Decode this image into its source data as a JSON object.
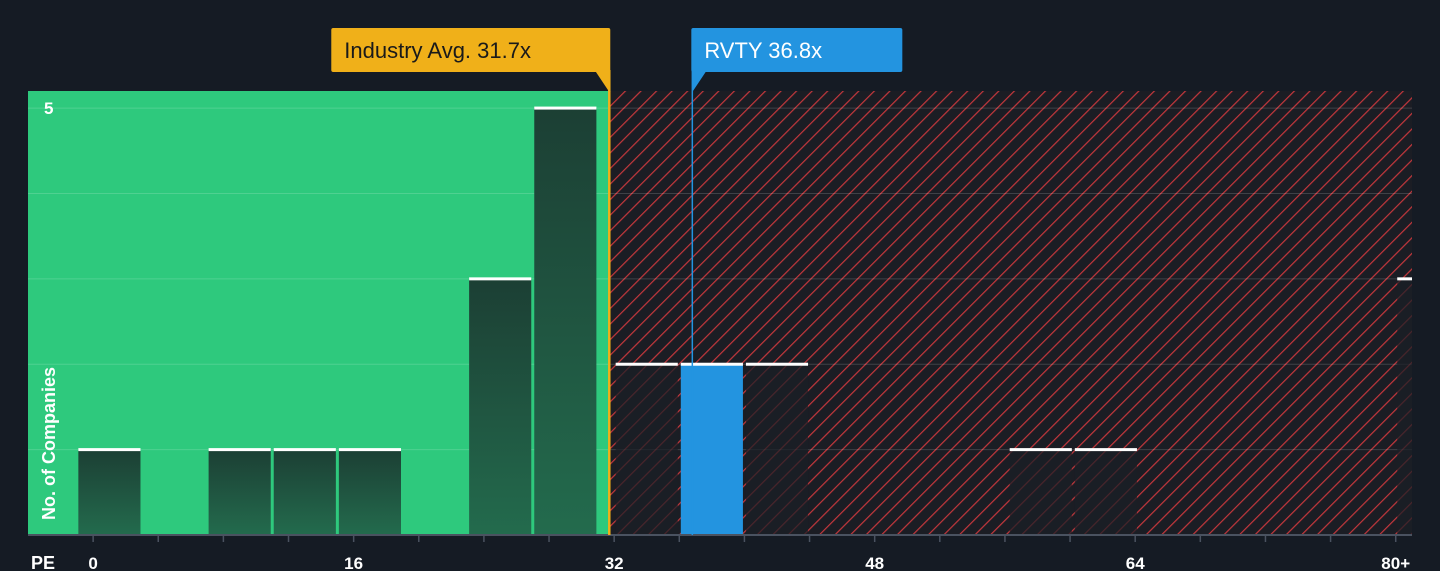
{
  "chart_data": {
    "type": "bar",
    "title": "",
    "xlabel": "PE",
    "ylabel": "No. of Companies",
    "xlim": [
      -4,
      81
    ],
    "ylim": [
      0,
      5.2
    ],
    "x_ticks": [
      {
        "value": 0,
        "label": "0"
      },
      {
        "value": 16,
        "label": "16"
      },
      {
        "value": 32,
        "label": "32"
      },
      {
        "value": 48,
        "label": "48"
      },
      {
        "value": 64,
        "label": "64"
      },
      {
        "value": 80,
        "label": "80+"
      }
    ],
    "x_minor_ticks": [
      0,
      4,
      8,
      12,
      16,
      20,
      24,
      28,
      32,
      36,
      40,
      44,
      48,
      52,
      56,
      60,
      64,
      68,
      72,
      76,
      80
    ],
    "y_ticks": [
      {
        "value": 5,
        "label": "5"
      }
    ],
    "y_gridlines": [
      1,
      2,
      3,
      4,
      5
    ],
    "bin_width": 4,
    "bins": [
      {
        "start": -1,
        "count": 1
      },
      {
        "start": 3,
        "count": 0
      },
      {
        "start": 7,
        "count": 1
      },
      {
        "start": 11,
        "count": 1
      },
      {
        "start": 15,
        "count": 1
      },
      {
        "start": 19,
        "count": 0
      },
      {
        "start": 23,
        "count": 3
      },
      {
        "start": 27,
        "count": 5
      },
      {
        "start": 32,
        "count": 2
      },
      {
        "start": 36,
        "count": 2,
        "highlight": true
      },
      {
        "start": 40,
        "count": 2
      },
      {
        "start": 56.2,
        "count": 1
      },
      {
        "start": 60.2,
        "count": 1
      },
      {
        "start": 80,
        "count": 3
      }
    ],
    "industry_avg": {
      "value": 31.7,
      "label": "Industry Avg. 31.7x",
      "color": "#f0b019"
    },
    "company": {
      "value": 36.8,
      "label": "RVTY 36.8x",
      "color": "#2394e0"
    },
    "colors": {
      "background": "#151b24",
      "fair_zone": "#2ec97d",
      "over_zone_stripe": "#c4373c",
      "bar_dark": "#1d4a3a",
      "bar_over": "#1f232b",
      "bar_top": "#ffffff",
      "highlight": "#2394e0"
    }
  }
}
